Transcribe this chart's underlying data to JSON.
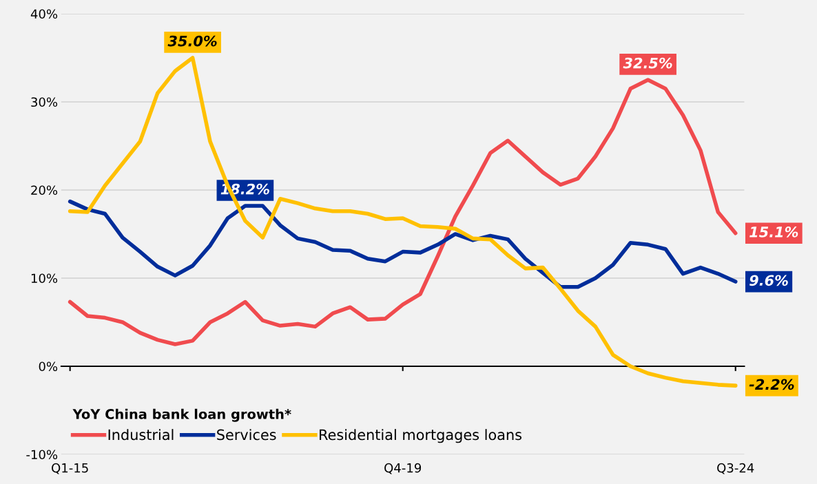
{
  "chart_data": {
    "type": "line",
    "categories": [
      "Q1-15",
      null,
      null,
      null,
      null,
      null,
      null,
      null,
      null,
      null,
      null,
      null,
      null,
      null,
      null,
      null,
      null,
      null,
      null,
      "Q4-19",
      null,
      null,
      null,
      null,
      null,
      null,
      null,
      null,
      null,
      null,
      null,
      null,
      null,
      null,
      null,
      null,
      null,
      null,
      "Q3-24"
    ],
    "series": [
      {
        "name": "Industrial",
        "color": "#f04b4e",
        "values": [
          7.3,
          5.7,
          5.5,
          5.0,
          3.8,
          3.0,
          2.5,
          2.9,
          5.0,
          6.0,
          7.3,
          5.2,
          4.6,
          4.8,
          4.5,
          6.0,
          6.7,
          5.3,
          5.4,
          7.0,
          8.2,
          12.5,
          17.0,
          20.5,
          24.2,
          25.6,
          23.8,
          22.0,
          20.6,
          21.3,
          23.8,
          27.0,
          31.5,
          32.5,
          31.5,
          28.5,
          24.5,
          17.5,
          15.1
        ],
        "value_labels": [
          null,
          null,
          null,
          null,
          null,
          null,
          null,
          null,
          null,
          null,
          null,
          null,
          null,
          null,
          null,
          null,
          null,
          null,
          null,
          null,
          null,
          null,
          null,
          null,
          null,
          null,
          null,
          null,
          null,
          null,
          null,
          null,
          null,
          "32.5%",
          null,
          null,
          null,
          null,
          "15.1%"
        ]
      },
      {
        "name": "Services",
        "color": "#002d9a",
        "values": [
          18.7,
          17.8,
          17.3,
          14.6,
          13.0,
          11.3,
          10.3,
          11.4,
          13.7,
          16.8,
          18.2,
          18.2,
          16.0,
          14.5,
          14.1,
          13.2,
          13.1,
          12.2,
          11.9,
          13.0,
          12.9,
          13.8,
          15.0,
          14.3,
          14.8,
          14.4,
          12.2,
          10.6,
          9.0,
          9.0,
          10.0,
          11.5,
          14.0,
          13.8,
          13.3,
          10.5,
          11.2,
          10.5,
          9.6
        ],
        "value_labels": [
          null,
          null,
          null,
          null,
          null,
          null,
          null,
          null,
          null,
          null,
          "18.2%",
          null,
          null,
          null,
          null,
          null,
          null,
          null,
          null,
          null,
          null,
          null,
          null,
          null,
          null,
          null,
          null,
          null,
          null,
          null,
          null,
          null,
          null,
          null,
          null,
          null,
          null,
          null,
          "9.6%"
        ]
      },
      {
        "name": "Residential mortgages loans",
        "color": "#ffc000",
        "values": [
          17.6,
          17.5,
          20.5,
          23.0,
          25.5,
          31.0,
          33.5,
          35.0,
          25.5,
          20.5,
          16.5,
          14.6,
          19.0,
          18.5,
          17.9,
          17.6,
          17.6,
          17.3,
          16.7,
          16.8,
          15.9,
          15.8,
          15.6,
          14.5,
          14.4,
          12.6,
          11.1,
          11.2,
          8.8,
          6.3,
          4.5,
          1.3,
          0.0,
          -0.8,
          -1.3,
          -1.7,
          -1.9,
          -2.1,
          -2.2
        ],
        "value_labels": [
          null,
          null,
          null,
          null,
          null,
          null,
          null,
          "35.0%",
          null,
          null,
          null,
          null,
          null,
          null,
          null,
          null,
          null,
          null,
          null,
          null,
          null,
          null,
          null,
          null,
          null,
          null,
          null,
          null,
          null,
          null,
          null,
          null,
          null,
          null,
          null,
          null,
          null,
          null,
          "-2.2%"
        ]
      }
    ],
    "ylim": [
      -10,
      40
    ],
    "yticks": [
      {
        "value": -10,
        "label": "-10%"
      },
      {
        "value": 0,
        "label": "0%"
      },
      {
        "value": 10,
        "label": "10%"
      },
      {
        "value": 20,
        "label": "20%"
      },
      {
        "value": 30,
        "label": "30%"
      },
      {
        "value": 40,
        "label": "40%"
      }
    ],
    "grid": "y",
    "legend": "bottom left",
    "legend_title": "YoY China bank loan growth*",
    "marker": "none",
    "line_style": "solid"
  }
}
